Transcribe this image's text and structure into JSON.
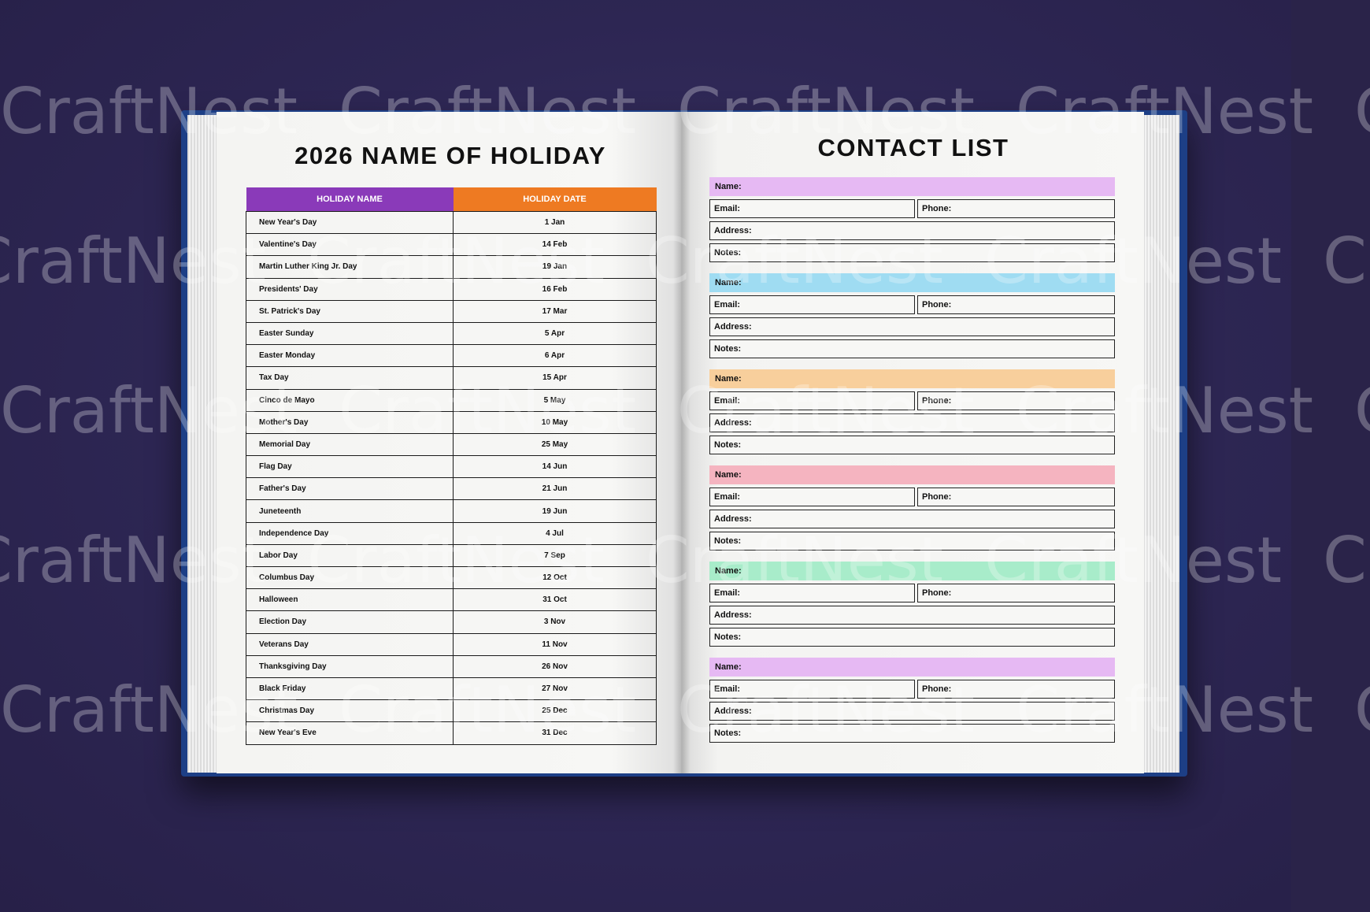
{
  "watermark": "CraftNest",
  "colors": {
    "background": "#2b2450",
    "cover": "#1d3f86",
    "holiday_name_header": "#8a3ab9",
    "holiday_date_header": "#ee7a22"
  },
  "left_page": {
    "title": "2026 NAME OF HOLIDAY",
    "columns": [
      "HOLIDAY NAME",
      "HOLIDAY DATE"
    ],
    "rows": [
      [
        "New Year's Day",
        "1 Jan"
      ],
      [
        "Valentine's Day",
        "14 Feb"
      ],
      [
        "Martin Luther King Jr. Day",
        "19 Jan"
      ],
      [
        "Presidents' Day",
        "16 Feb"
      ],
      [
        "St. Patrick's Day",
        "17 Mar"
      ],
      [
        "Easter Sunday",
        "5 Apr"
      ],
      [
        "Easter Monday",
        "6 Apr"
      ],
      [
        "Tax Day",
        "15 Apr"
      ],
      [
        "Cinco de Mayo",
        "5 May"
      ],
      [
        "Mother's Day",
        "10 May"
      ],
      [
        "Memorial Day",
        "25 May"
      ],
      [
        "Flag Day",
        "14 Jun"
      ],
      [
        "Father's Day",
        "21 Jun"
      ],
      [
        "Juneteenth",
        "19 Jun"
      ],
      [
        "Independence Day",
        "4 Jul"
      ],
      [
        "Labor Day",
        "7 Sep"
      ],
      [
        "Columbus Day",
        "12 Oct"
      ],
      [
        "Halloween",
        "31 Oct"
      ],
      [
        "Election Day",
        "3 Nov"
      ],
      [
        "Veterans Day",
        "11 Nov"
      ],
      [
        "Thanksgiving Day",
        "26 Nov"
      ],
      [
        "Black Friday",
        "27 Nov"
      ],
      [
        "Christmas Day",
        "25 Dec"
      ],
      [
        "New Year's Eve",
        "31 Dec"
      ]
    ]
  },
  "right_page": {
    "title": "CONTACT LIST",
    "labels": {
      "name": "Name:",
      "email": "Email:",
      "phone": "Phone:",
      "address": "Address:",
      "notes": "Notes:"
    },
    "entries": [
      {
        "color": "#e6b9f3"
      },
      {
        "color": "#9fdcf2"
      },
      {
        "color": "#f8cf9c"
      },
      {
        "color": "#f5b4c0"
      },
      {
        "color": "#a8ecca"
      },
      {
        "color": "#e6b9f3"
      }
    ]
  }
}
